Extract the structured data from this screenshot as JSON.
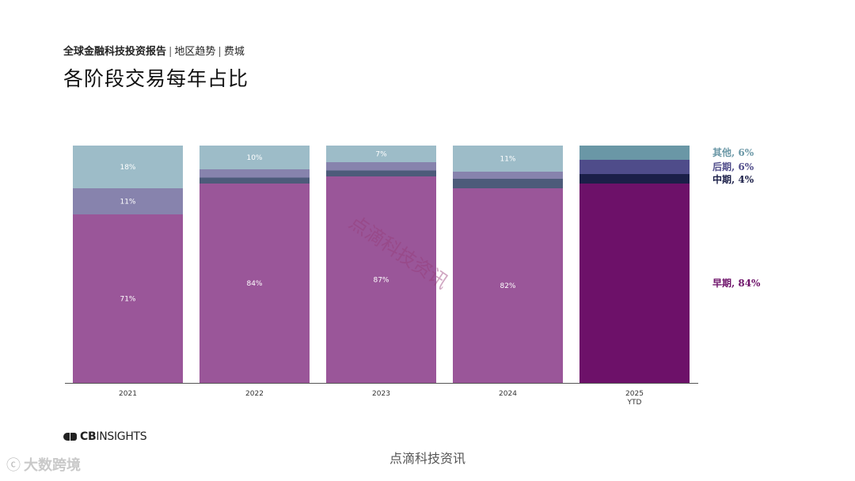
{
  "header": {
    "breadcrumb_main": "全球金融科技投资报告",
    "breadcrumb_sep1": "|",
    "breadcrumb_region": "地区趋势",
    "breadcrumb_sep2": "|",
    "breadcrumb_city": "费城",
    "title": "各阶段交易每年占比"
  },
  "chart_data": {
    "type": "bar",
    "stacked": true,
    "normalized": true,
    "categories": [
      "2021",
      "2022",
      "2023",
      "2024",
      "2025"
    ],
    "category_sublabels": [
      "",
      "",
      "",
      "",
      "YTD"
    ],
    "series": [
      {
        "name": "早期",
        "values": [
          71,
          84,
          87,
          82,
          84
        ],
        "labels": [
          "71%",
          "84%",
          "87%",
          "82%",
          ""
        ],
        "color": "#9a5699",
        "highlight_color": "#6d1169"
      },
      {
        "name": "中期",
        "values": [
          0,
          2.5,
          2.5,
          4,
          4
        ],
        "labels": [
          "",
          "",
          "",
          "",
          ""
        ],
        "color": "#4d5b7a",
        "highlight_color": "#1b1f48"
      },
      {
        "name": "后期",
        "values": [
          11,
          3.5,
          3.5,
          3,
          6
        ],
        "labels": [
          "11%",
          "",
          "",
          "",
          ""
        ],
        "color": "#8783ad",
        "highlight_color": "#4f4c8a"
      },
      {
        "name": "其他",
        "values": [
          18,
          10,
          7,
          11,
          6
        ],
        "labels": [
          "18%",
          "10%",
          "7%",
          "11%",
          ""
        ],
        "color": "#9dbcc8",
        "highlight_color": "#6a97a6"
      }
    ],
    "legend": [
      {
        "name": "其他",
        "value": "6%",
        "text": "其他, 6%",
        "color": "#6a97a6"
      },
      {
        "name": "后期",
        "value": "6%",
        "text": "后期, 6%",
        "color": "#4f4c8a"
      },
      {
        "name": "中期",
        "value": "4%",
        "text": "中期, 4%",
        "color": "#1b1f48"
      },
      {
        "name": "早期",
        "value": "84%",
        "text": "早期, 84%",
        "color": "#6d1169"
      }
    ],
    "legend_placement": "right",
    "ylim": [
      0,
      100
    ],
    "grid": false
  },
  "footer": {
    "logo_prefix": "CB",
    "logo_suffix": "INSIGHTS",
    "credit": "点滴科技资讯",
    "corner_text": "大数跨境"
  },
  "watermark": "点滴科技资讯"
}
